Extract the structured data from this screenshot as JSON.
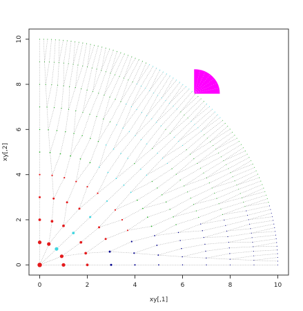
{
  "chart_data": {
    "type": "scatter",
    "title": "",
    "xlabel": "xy[,1]",
    "ylabel": "xy[,2]",
    "xlim": [
      -0.45,
      10.45
    ],
    "ylim": [
      -0.45,
      10.45
    ],
    "xticks": [
      0,
      2,
      4,
      6,
      8,
      10
    ],
    "yticks": [
      0,
      2,
      4,
      6,
      8,
      10
    ],
    "xtick_labels": [
      "0",
      "2",
      "4",
      "6",
      "8",
      "10"
    ],
    "ytick_labels": [
      "0",
      "2",
      "4",
      "6",
      "8",
      "10"
    ],
    "grid": false,
    "legend": "none",
    "rings": [
      {
        "radius": 1,
        "points": 4,
        "color": "#e41a1c",
        "dot_size": 2.6
      },
      {
        "radius": 2,
        "points": 6,
        "color": "#e41a1c",
        "dot_size": 1.9
      },
      {
        "radius": 3,
        "points": 8,
        "color": "#e41a1c",
        "dot_size": 1.5
      },
      {
        "radius": 4,
        "points": 12,
        "color": "#e41a1c",
        "dot_size": 1.1
      },
      {
        "radius": 5,
        "points": 18,
        "color": "#32b432",
        "dot_size": 0.9
      },
      {
        "radius": 6,
        "points": 26,
        "color": "#32b432",
        "dot_size": 0.75
      },
      {
        "radius": 7,
        "points": 36,
        "color": "#32b432",
        "dot_size": 0.65
      },
      {
        "radius": 8,
        "points": 50,
        "color": "#32b432",
        "dot_size": 0.6
      },
      {
        "radius": 9,
        "points": 70,
        "color": "#32b432",
        "dot_size": 0.55
      },
      {
        "radius": 10,
        "points": 95,
        "color": "#32b432",
        "dot_size": 0.55
      }
    ],
    "color_bands": [
      {
        "from_deg": 0,
        "to_deg": 16,
        "color": "#00008b",
        "min_radius": 3
      },
      {
        "from_deg": 16,
        "to_deg": 22,
        "color": "#32b432",
        "min_radius": 3
      },
      {
        "from_deg": 50,
        "to_deg": 63,
        "color": "#3fd6e0",
        "min_radius": 5
      },
      {
        "from_deg": 40,
        "to_deg": 46,
        "color": "#3fd6e0",
        "min_radius": 1
      }
    ],
    "center_point": {
      "x": 0,
      "y": 0,
      "color": "#e41a1c"
    },
    "highlight_sector": {
      "cx": 6.5,
      "cy": 7.6,
      "r_min": 0,
      "r_max": 1.05,
      "from_deg": 0,
      "to_deg": 90,
      "color": "#ff00ff"
    },
    "connector_color": "#7a7a7a"
  }
}
